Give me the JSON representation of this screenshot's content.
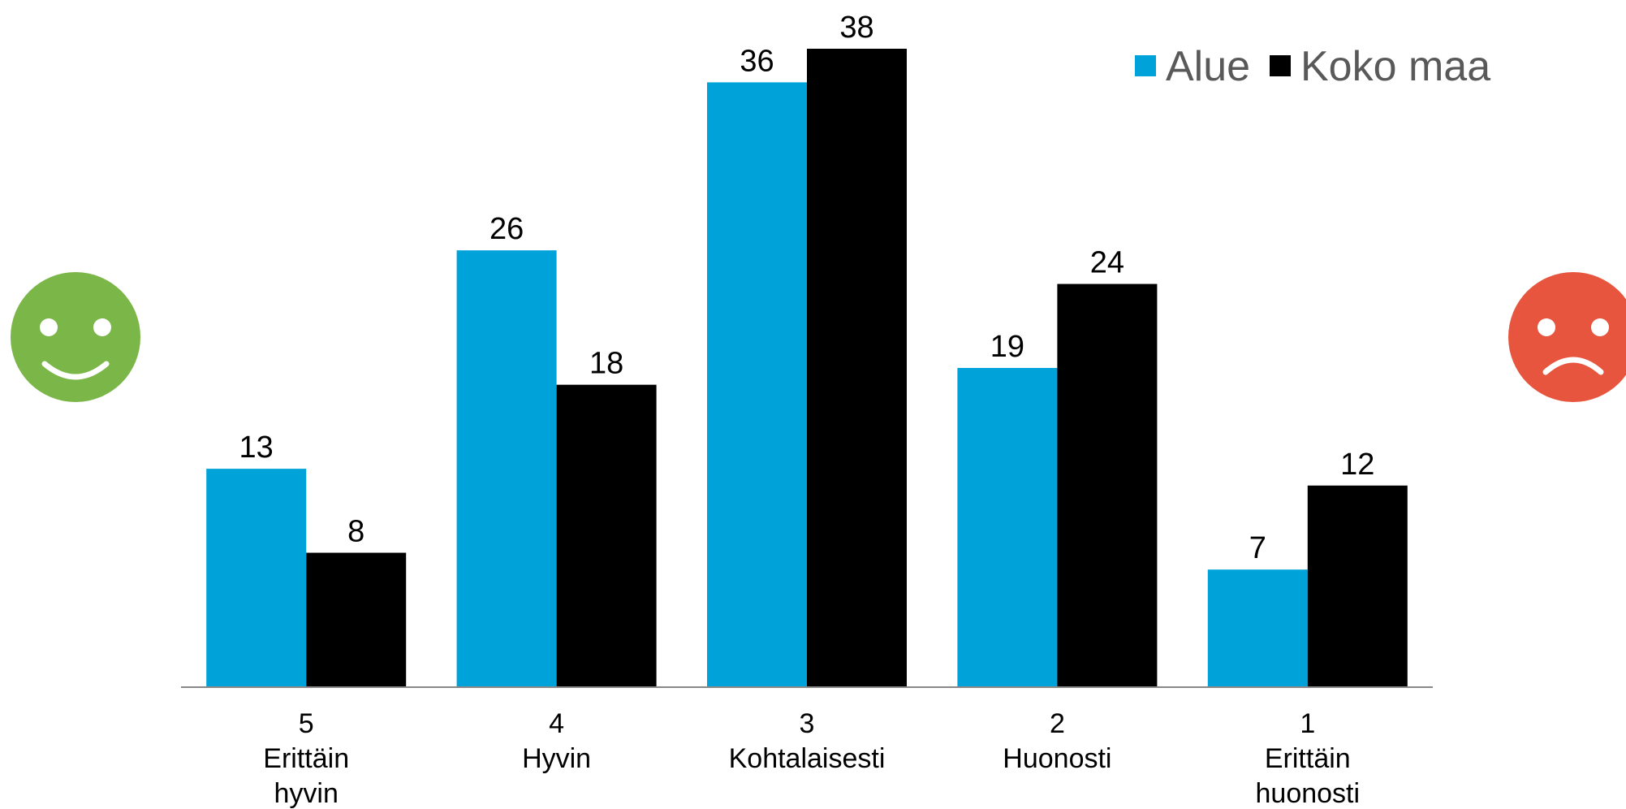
{
  "chart_data": {
    "type": "bar",
    "categories": [
      [
        "5",
        "Erittäin",
        "hyvin"
      ],
      [
        "4",
        "Hyvin"
      ],
      [
        "3",
        "Kohtalaisesti"
      ],
      [
        "2",
        "Huonosti"
      ],
      [
        "1",
        "Erittäin",
        "huonosti"
      ]
    ],
    "series": [
      {
        "name": "Alue",
        "color": "#00A3D9",
        "values": [
          13,
          26,
          36,
          19,
          7
        ]
      },
      {
        "name": "Koko maa",
        "color": "#000000",
        "values": [
          8,
          18,
          38,
          24,
          12
        ]
      }
    ],
    "ylim": [
      0,
      38
    ],
    "grid": false,
    "legend": "top-right",
    "data_labels": true
  },
  "icons": {
    "left": {
      "name": "smiley-happy-icon",
      "color": "#7AB648"
    },
    "right": {
      "name": "smiley-sad-icon",
      "color": "#E8553E"
    }
  }
}
